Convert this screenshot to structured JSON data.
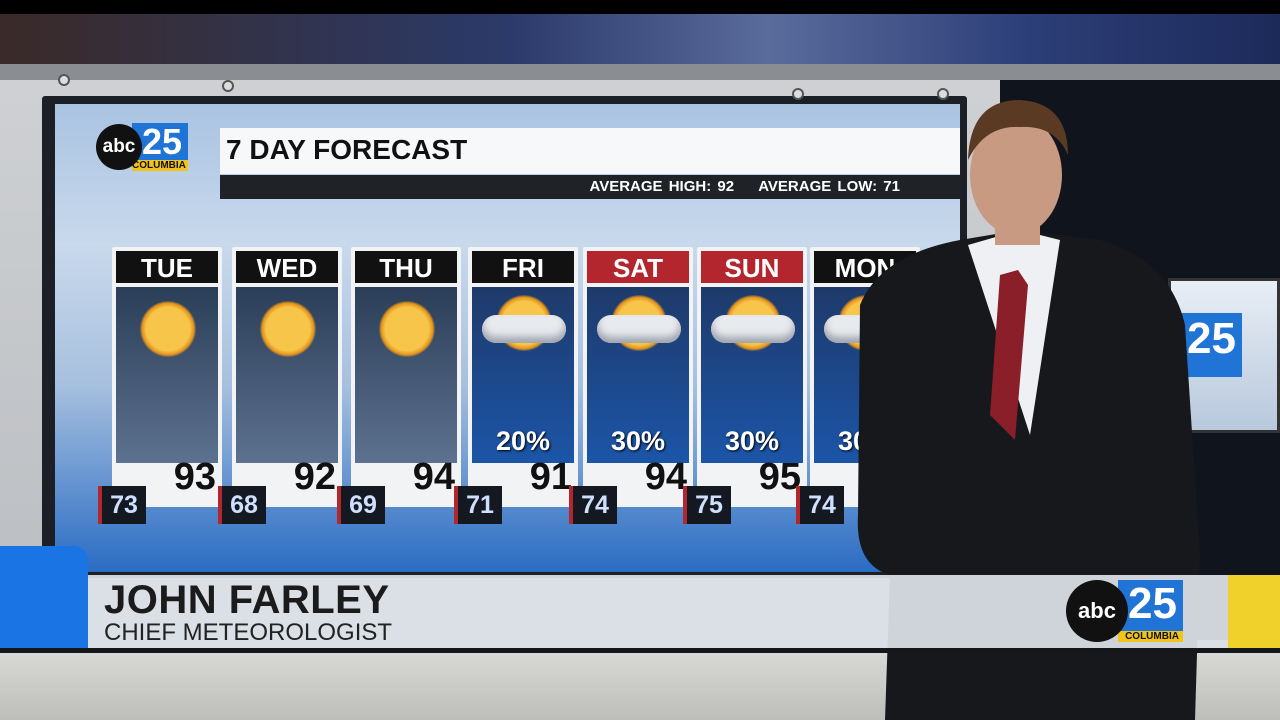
{
  "station_logo": {
    "network": "abc",
    "channel": "25",
    "city": "COLUMBIA"
  },
  "graphic": {
    "title": "7 DAY FORECAST",
    "average_high": "AVERAGE HIGH: 92",
    "average_low": "AVERAGE LOW: 71",
    "days": [
      {
        "label": "TUE",
        "icon": "sunny-icon",
        "precip": "",
        "high": "93",
        "low": "73",
        "weekend": false
      },
      {
        "label": "WED",
        "icon": "sunny-icon",
        "precip": "",
        "high": "92",
        "low": "68",
        "weekend": false
      },
      {
        "label": "THU",
        "icon": "sunny-icon",
        "precip": "",
        "high": "94",
        "low": "69",
        "weekend": false
      },
      {
        "label": "FRI",
        "icon": "partly-cloudy-icon",
        "precip": "20%",
        "high": "91",
        "low": "71",
        "weekend": false
      },
      {
        "label": "SAT",
        "icon": "partly-cloudy-icon",
        "precip": "30%",
        "high": "94",
        "low": "74",
        "weekend": true
      },
      {
        "label": "SUN",
        "icon": "partly-cloudy-icon",
        "precip": "30%",
        "high": "95",
        "low": "75",
        "weekend": true
      },
      {
        "label": "MON",
        "icon": "partly-cloudy-icon",
        "precip": "30%",
        "high": "",
        "low": "74",
        "weekend": false
      }
    ],
    "colors": {
      "weekend_header": "#b3262d",
      "weekday_header": "#111111",
      "brand_blue": "#1f74d6",
      "brand_yellow": "#f2c31a"
    }
  },
  "lower_third": {
    "name": "JOHN FARLEY",
    "title": "CHIEF METEOROLOGIST"
  }
}
